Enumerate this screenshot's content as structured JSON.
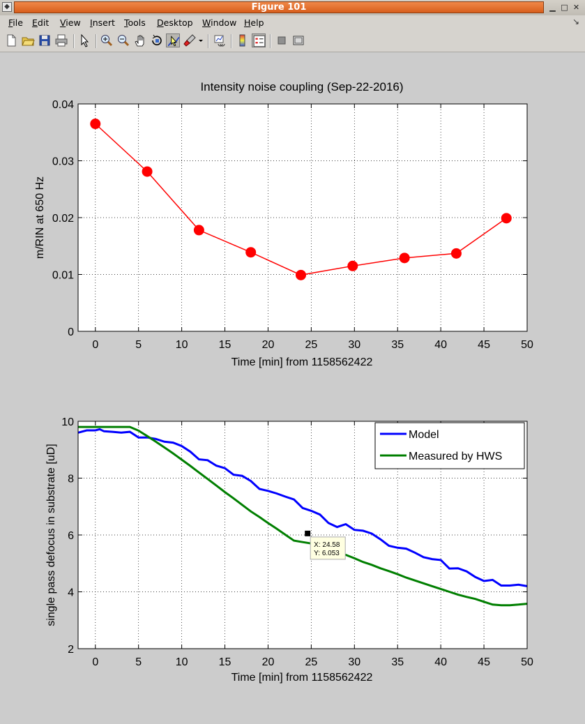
{
  "window": {
    "title": "Figure 101"
  },
  "menu": [
    {
      "label": "File",
      "ul": "F",
      "rest": "ile"
    },
    {
      "label": "Edit",
      "ul": "E",
      "rest": "dit"
    },
    {
      "label": "View",
      "ul": "V",
      "rest": "iew"
    },
    {
      "label": "Insert",
      "ul": "I",
      "rest": "nsert"
    },
    {
      "label": "Tools",
      "ul": "T",
      "rest": "ools"
    },
    {
      "label": "Desktop",
      "ul": "D",
      "rest": "esktop"
    },
    {
      "label": "Window",
      "ul": "W",
      "rest": "indow"
    },
    {
      "label": "Help",
      "ul": "H",
      "rest": "elp"
    }
  ],
  "toolbar": {
    "icons": [
      "new-figure-icon",
      "open-file-icon",
      "save-icon",
      "print-icon",
      "edit-plot-icon",
      "zoom-in-icon",
      "zoom-out-icon",
      "pan-icon",
      "rotate-3d-icon",
      "data-cursor-icon",
      "brush-icon",
      "brush-menu-icon",
      "link-plot-icon",
      "colorbar-icon",
      "legend-icon",
      "hide-plot-tools-icon",
      "show-plot-tools-icon"
    ],
    "pressed": "data-cursor-icon"
  },
  "chart_data": [
    {
      "type": "line",
      "title": "Intensity noise coupling (Sep-22-2016)",
      "xlabel": "Time [min] from 1158562422",
      "ylabel": "m/RIN at  650 Hz",
      "xlim": [
        -2,
        50
      ],
      "ylim": [
        0,
        0.04
      ],
      "xticks": [
        0,
        5,
        10,
        15,
        20,
        25,
        30,
        35,
        40,
        45,
        50
      ],
      "yticks": [
        0,
        0.01,
        0.02,
        0.03,
        0.04
      ],
      "ytick_labels": [
        "0",
        "0.01",
        "0.02",
        "0.03",
        "0.04"
      ],
      "grid": true,
      "series": [
        {
          "color": "#ff0000",
          "marker": "circle",
          "x": [
            0.0,
            6.0,
            12.0,
            18.0,
            23.8,
            29.8,
            35.8,
            41.8,
            47.6
          ],
          "y": [
            0.0365,
            0.0281,
            0.0178,
            0.0139,
            0.0099,
            0.0115,
            0.0129,
            0.0137,
            0.0199
          ]
        }
      ]
    },
    {
      "type": "line",
      "xlabel": "Time [min] from 1158562422",
      "ylabel": "single pass defocus in substrate [uD]",
      "xlim": [
        -2,
        50
      ],
      "ylim": [
        2,
        10
      ],
      "xticks": [
        0,
        5,
        10,
        15,
        20,
        25,
        30,
        35,
        40,
        45,
        50
      ],
      "yticks": [
        2,
        4,
        6,
        8,
        10
      ],
      "ytick_labels": [
        "2",
        "4",
        "6",
        "8",
        "10"
      ],
      "grid": true,
      "legend_position": "top-right",
      "series": [
        {
          "name": "Model",
          "color": "#0000ff",
          "x": [
            -2,
            -1,
            0,
            0.5,
            1,
            2,
            3,
            4,
            5,
            6,
            7,
            8,
            9,
            10,
            11,
            12,
            13,
            14,
            15,
            16,
            17,
            18,
            19,
            20,
            21,
            22,
            23,
            24,
            25,
            26,
            27,
            28,
            29,
            30,
            31,
            32,
            33,
            34,
            35,
            36,
            37,
            38,
            39,
            40,
            41,
            42,
            43,
            44,
            45,
            46,
            47,
            48,
            49,
            50
          ],
          "y": [
            9.6,
            9.68,
            9.68,
            9.72,
            9.65,
            9.63,
            9.6,
            9.63,
            9.43,
            9.43,
            9.38,
            9.28,
            9.25,
            9.13,
            8.93,
            8.66,
            8.63,
            8.44,
            8.35,
            8.12,
            8.08,
            7.9,
            7.62,
            7.55,
            7.46,
            7.35,
            7.25,
            6.95,
            6.85,
            6.72,
            6.42,
            6.28,
            6.38,
            6.18,
            6.15,
            6.05,
            5.85,
            5.62,
            5.55,
            5.52,
            5.38,
            5.22,
            5.15,
            5.12,
            4.82,
            4.83,
            4.72,
            4.52,
            4.38,
            4.42,
            4.22,
            4.22,
            4.25,
            4.2
          ]
        },
        {
          "name": "Measured by HWS",
          "color": "#007f00",
          "x": [
            -2,
            -1,
            0,
            1,
            2,
            3,
            4,
            5,
            6,
            7,
            8,
            9,
            10,
            11,
            12,
            13,
            14,
            15,
            16,
            17,
            18,
            19,
            20,
            21,
            22,
            23,
            24,
            25,
            26,
            27,
            28,
            29,
            30,
            31,
            32,
            33,
            34,
            35,
            36,
            37,
            38,
            39,
            40,
            41,
            42,
            43,
            44,
            45,
            46,
            47,
            48,
            49,
            50
          ],
          "y": [
            9.8,
            9.8,
            9.8,
            9.8,
            9.8,
            9.8,
            9.8,
            9.67,
            9.48,
            9.28,
            9.08,
            8.87,
            8.65,
            8.43,
            8.2,
            7.97,
            7.74,
            7.51,
            7.29,
            7.06,
            6.83,
            6.63,
            6.42,
            6.22,
            6.01,
            5.8,
            5.75,
            5.7,
            5.6,
            5.5,
            5.4,
            5.3,
            5.18,
            5.05,
            4.95,
            4.83,
            4.73,
            4.62,
            4.5,
            4.4,
            4.3,
            4.2,
            4.1,
            4.0,
            3.9,
            3.82,
            3.75,
            3.65,
            3.55,
            3.53,
            3.53,
            3.55,
            3.58
          ]
        }
      ],
      "datatip": {
        "x_label": "X: 24.58",
        "y_label": "Y: 6.053",
        "x": 24.58,
        "y": 6.053
      }
    }
  ]
}
